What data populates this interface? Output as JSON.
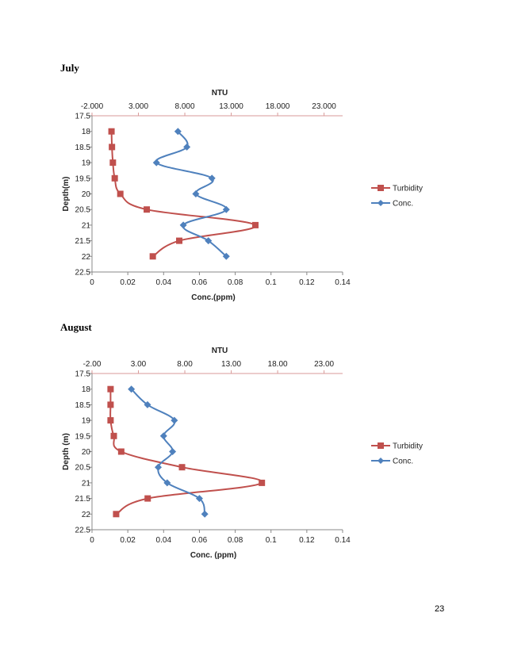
{
  "page_number": "23",
  "colors": {
    "turbidity": "#c0504d",
    "conc": "#4f81bd",
    "axis_top": "#d89a99",
    "axis": "#888888"
  },
  "chart_data": [
    {
      "type": "scatter",
      "label": "July",
      "x_top_title": "NTU",
      "x_top_ticks": [
        "-2.000",
        "3.000",
        "8.000",
        "13.000",
        "18.000",
        "23.000"
      ],
      "x_top_range": [
        -2,
        25
      ],
      "x_bottom_title": "Conc.(ppm)",
      "x_bottom_ticks": [
        "0",
        "0.02",
        "0.04",
        "0.06",
        "0.08",
        "0.1",
        "0.12",
        "0.14"
      ],
      "x_bottom_range": [
        0,
        0.14
      ],
      "y_title": "Depth(m)",
      "y_ticks": [
        "17.5",
        "18",
        "18.5",
        "19",
        "19.5",
        "20",
        "20.5",
        "21",
        "21.5",
        "22",
        "22.5"
      ],
      "y_range": [
        17.5,
        22.5
      ],
      "y_reversed": true,
      "series": [
        {
          "name": "Turbidity",
          "axis": "top",
          "marker": "square",
          "depth": [
            18,
            18.5,
            19,
            19.5,
            20,
            20.5,
            21,
            21.5,
            22
          ],
          "values": [
            0.1,
            0.15,
            0.25,
            0.45,
            1.05,
            3.9,
            15.6,
            7.4,
            4.55
          ]
        },
        {
          "name": "Conc.",
          "axis": "bottom",
          "marker": "diamond",
          "depth": [
            18,
            18.5,
            19,
            19.5,
            20,
            20.5,
            21,
            21.5,
            22
          ],
          "values": [
            0.048,
            0.053,
            0.036,
            0.067,
            0.058,
            0.075,
            0.051,
            0.065,
            0.075
          ]
        }
      ]
    },
    {
      "type": "scatter",
      "label": "August",
      "x_top_title": "NTU",
      "x_top_ticks": [
        "-2.00",
        "3.00",
        "8.00",
        "13.00",
        "18.00",
        "23.00"
      ],
      "x_top_range": [
        -2,
        25
      ],
      "x_bottom_title": "Conc. (ppm)",
      "x_bottom_ticks": [
        "0",
        "0.02",
        "0.04",
        "0.06",
        "0.08",
        "0.1",
        "0.12",
        "0.14"
      ],
      "x_bottom_range": [
        0,
        0.14
      ],
      "y_title": "Depth (m)",
      "y_ticks": [
        "17.5",
        "18",
        "18.5",
        "19",
        "19.5",
        "20",
        "20.5",
        "21",
        "21.5",
        "22",
        "22.5"
      ],
      "y_range": [
        17.5,
        22.5
      ],
      "y_reversed": true,
      "series": [
        {
          "name": "Turbidity",
          "axis": "top",
          "marker": "square",
          "depth": [
            18,
            18.5,
            19,
            19.5,
            20,
            20.5,
            21,
            21.5,
            22
          ],
          "values": [
            0.0,
            0.0,
            0.0,
            0.35,
            1.15,
            7.7,
            16.3,
            4.0,
            0.6
          ]
        },
        {
          "name": "Conc.",
          "axis": "bottom",
          "marker": "diamond",
          "depth": [
            18,
            18.5,
            19,
            19.5,
            20,
            20.5,
            21,
            21.5,
            22
          ],
          "values": [
            0.022,
            0.031,
            0.046,
            0.04,
            0.045,
            0.037,
            0.042,
            0.06,
            0.063
          ]
        }
      ]
    }
  ]
}
